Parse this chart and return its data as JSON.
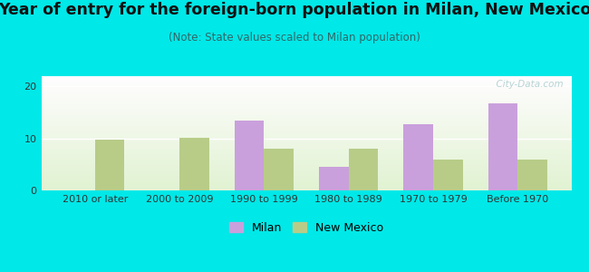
{
  "title": "Year of entry for the foreign-born population in Milan, New Mexico",
  "subtitle": "(Note: State values scaled to Milan population)",
  "categories": [
    "2010 or later",
    "2000 to 2009",
    "1990 to 1999",
    "1980 to 1989",
    "1970 to 1979",
    "Before 1970"
  ],
  "milan_values": [
    0,
    0,
    13.5,
    4.5,
    12.8,
    16.7
  ],
  "nm_values": [
    9.7,
    10.2,
    8.0,
    8.0,
    6.0,
    6.0
  ],
  "milan_color": "#c9a0dc",
  "nm_color": "#b8cc88",
  "bg_color": "#00e8e8",
  "ylim": [
    0,
    22
  ],
  "yticks": [
    0,
    10,
    20
  ],
  "bar_width": 0.35,
  "title_fontsize": 12.5,
  "subtitle_fontsize": 8.5,
  "tick_fontsize": 8,
  "legend_labels": [
    "Milan",
    "New Mexico"
  ],
  "watermark": "  City-Data.com",
  "title_color": "#111111",
  "subtitle_color": "#336666"
}
